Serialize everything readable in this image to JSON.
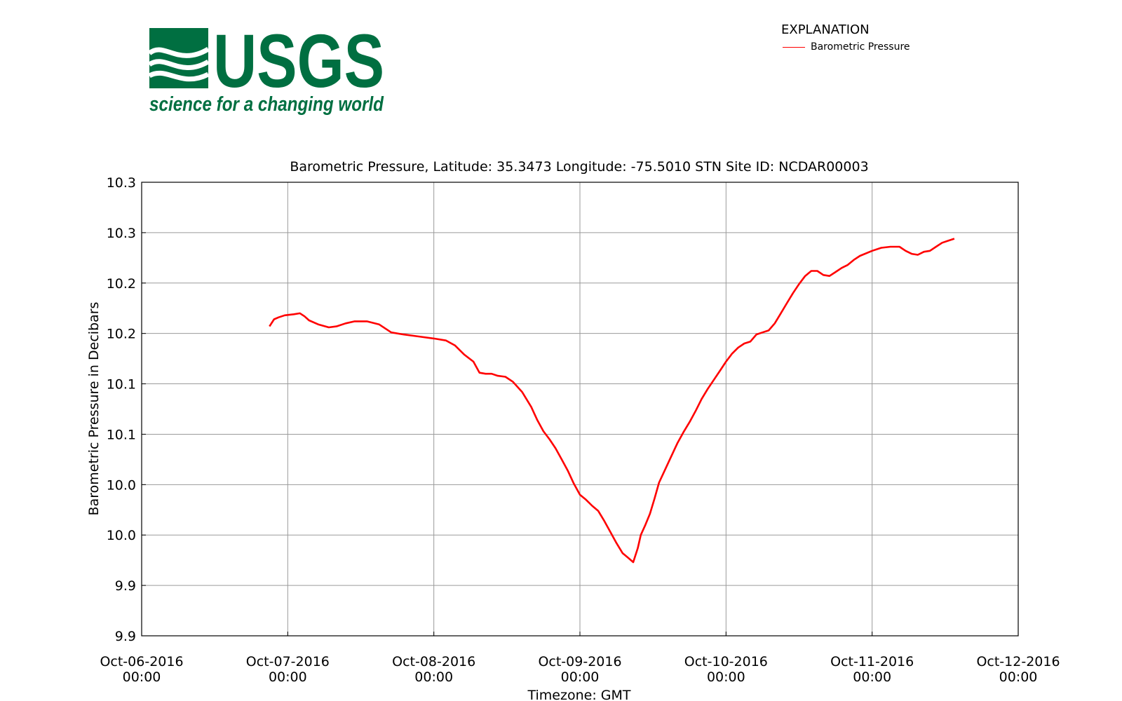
{
  "logo": {
    "wordmark": "USGS",
    "tagline": "science for a changing world",
    "color": "#006f41"
  },
  "legend": {
    "title": "EXPLANATION",
    "entry": "Barometric Pressure"
  },
  "chart_data": {
    "type": "line",
    "title": "Barometric Pressure, Latitude: 35.3473 Longitude: -75.5010 STN Site ID: NCDAR00003",
    "xlabel": "Timezone: GMT",
    "ylabel": "Barometric Pressure in Decibars",
    "grid": true,
    "legend_position": "top-right",
    "ylim": [
      9.89,
      10.34
    ],
    "y_ticks": [
      9.89,
      9.94,
      9.99,
      10.04,
      10.09,
      10.14,
      10.19,
      10.24,
      10.29,
      10.34
    ],
    "y_tick_labels": [
      "9.9",
      "9.9",
      "10.0",
      "10.0",
      "10.1",
      "10.1",
      "10.2",
      "10.2",
      "10.3",
      "10.3"
    ],
    "xlim": [
      "2016-10-06 00:00",
      "2016-10-12 00:00"
    ],
    "x_ticks": [
      "2016-10-06 00:00",
      "2016-10-07 00:00",
      "2016-10-08 00:00",
      "2016-10-09 00:00",
      "2016-10-10 00:00",
      "2016-10-11 00:00",
      "2016-10-12 00:00"
    ],
    "x_tick_labels": [
      [
        "Oct-06-2016",
        "00:00"
      ],
      [
        "Oct-07-2016",
        "00:00"
      ],
      [
        "Oct-08-2016",
        "00:00"
      ],
      [
        "Oct-09-2016",
        "00:00"
      ],
      [
        "Oct-10-2016",
        "00:00"
      ],
      [
        "Oct-11-2016",
        "00:00"
      ],
      [
        "Oct-12-2016",
        "00:00"
      ]
    ],
    "series": [
      {
        "name": "Barometric Pressure",
        "color": "#ff0000",
        "points": [
          [
            "2016-10-06 21:00",
            10.197
          ],
          [
            "2016-10-06 21:45",
            10.204
          ],
          [
            "2016-10-06 22:30",
            10.206
          ],
          [
            "2016-10-06 23:30",
            10.208
          ],
          [
            "2016-10-07 01:00",
            10.209
          ],
          [
            "2016-10-07 02:00",
            10.21
          ],
          [
            "2016-10-07 02:45",
            10.207
          ],
          [
            "2016-10-07 03:30",
            10.203
          ],
          [
            "2016-10-07 05:00",
            10.199
          ],
          [
            "2016-10-07 06:45",
            10.196
          ],
          [
            "2016-10-07 08:00",
            10.197
          ],
          [
            "2016-10-07 09:30",
            10.2
          ],
          [
            "2016-10-07 11:00",
            10.202
          ],
          [
            "2016-10-07 13:00",
            10.202
          ],
          [
            "2016-10-07 15:00",
            10.199
          ],
          [
            "2016-10-07 17:00",
            10.191
          ],
          [
            "2016-10-07 19:00",
            10.189
          ],
          [
            "2016-10-07 21:30",
            10.187
          ],
          [
            "2016-10-08 00:00",
            10.185
          ],
          [
            "2016-10-08 02:00",
            10.183
          ],
          [
            "2016-10-08 03:30",
            10.178
          ],
          [
            "2016-10-08 05:00",
            10.169
          ],
          [
            "2016-10-08 06:30",
            10.162
          ],
          [
            "2016-10-08 07:30",
            10.151
          ],
          [
            "2016-10-08 08:30",
            10.15
          ],
          [
            "2016-10-08 09:30",
            10.15
          ],
          [
            "2016-10-08 10:30",
            10.148
          ],
          [
            "2016-10-08 11:45",
            10.147
          ],
          [
            "2016-10-08 13:00",
            10.142
          ],
          [
            "2016-10-08 14:30",
            10.132
          ],
          [
            "2016-10-08 16:00",
            10.117
          ],
          [
            "2016-10-08 17:00",
            10.104
          ],
          [
            "2016-10-08 18:00",
            10.093
          ],
          [
            "2016-10-08 19:00",
            10.085
          ],
          [
            "2016-10-08 20:00",
            10.076
          ],
          [
            "2016-10-08 21:00",
            10.065
          ],
          [
            "2016-10-08 22:00",
            10.054
          ],
          [
            "2016-10-08 23:00",
            10.041
          ],
          [
            "2016-10-09 00:00",
            10.03
          ],
          [
            "2016-10-09 01:00",
            10.025
          ],
          [
            "2016-10-09 02:00",
            10.019
          ],
          [
            "2016-10-09 03:00",
            10.014
          ],
          [
            "2016-10-09 04:00",
            10.004
          ],
          [
            "2016-10-09 05:00",
            9.993
          ],
          [
            "2016-10-09 06:00",
            9.982
          ],
          [
            "2016-10-09 07:00",
            9.972
          ],
          [
            "2016-10-09 08:00",
            9.967
          ],
          [
            "2016-10-09 08:45",
            9.963
          ],
          [
            "2016-10-09 09:30",
            9.977
          ],
          [
            "2016-10-09 10:00",
            9.99
          ],
          [
            "2016-10-09 10:45",
            10.0
          ],
          [
            "2016-10-09 11:30",
            10.011
          ],
          [
            "2016-10-09 12:15",
            10.026
          ],
          [
            "2016-10-09 13:00",
            10.042
          ],
          [
            "2016-10-09 14:00",
            10.055
          ],
          [
            "2016-10-09 15:00",
            10.068
          ],
          [
            "2016-10-09 16:00",
            10.081
          ],
          [
            "2016-10-09 17:00",
            10.092
          ],
          [
            "2016-10-09 18:00",
            10.102
          ],
          [
            "2016-10-09 19:00",
            10.113
          ],
          [
            "2016-10-09 20:00",
            10.125
          ],
          [
            "2016-10-09 21:00",
            10.135
          ],
          [
            "2016-10-09 22:00",
            10.144
          ],
          [
            "2016-10-09 23:00",
            10.153
          ],
          [
            "2016-10-10 00:00",
            10.162
          ],
          [
            "2016-10-10 01:00",
            10.17
          ],
          [
            "2016-10-10 02:00",
            10.176
          ],
          [
            "2016-10-10 03:00",
            10.18
          ],
          [
            "2016-10-10 04:00",
            10.182
          ],
          [
            "2016-10-10 05:00",
            10.189
          ],
          [
            "2016-10-10 06:00",
            10.191
          ],
          [
            "2016-10-10 07:00",
            10.193
          ],
          [
            "2016-10-10 08:00",
            10.2
          ],
          [
            "2016-10-10 09:00",
            10.21
          ],
          [
            "2016-10-10 10:00",
            10.22
          ],
          [
            "2016-10-10 11:00",
            10.23
          ],
          [
            "2016-10-10 12:00",
            10.239
          ],
          [
            "2016-10-10 13:00",
            10.247
          ],
          [
            "2016-10-10 14:00",
            10.252
          ],
          [
            "2016-10-10 15:00",
            10.252
          ],
          [
            "2016-10-10 16:00",
            10.248
          ],
          [
            "2016-10-10 17:00",
            10.247
          ],
          [
            "2016-10-10 18:00",
            10.251
          ],
          [
            "2016-10-10 19:00",
            10.255
          ],
          [
            "2016-10-10 20:00",
            10.258
          ],
          [
            "2016-10-10 21:00",
            10.263
          ],
          [
            "2016-10-10 22:00",
            10.267
          ],
          [
            "2016-10-11 00:00",
            10.272
          ],
          [
            "2016-10-11 01:30",
            10.275
          ],
          [
            "2016-10-11 03:00",
            10.276
          ],
          [
            "2016-10-11 04:30",
            10.276
          ],
          [
            "2016-10-11 05:30",
            10.272
          ],
          [
            "2016-10-11 06:30",
            10.269
          ],
          [
            "2016-10-11 07:30",
            10.268
          ],
          [
            "2016-10-11 08:30",
            10.271
          ],
          [
            "2016-10-11 09:30",
            10.272
          ],
          [
            "2016-10-11 10:30",
            10.276
          ],
          [
            "2016-10-11 11:30",
            10.28
          ],
          [
            "2016-10-11 12:30",
            10.282
          ],
          [
            "2016-10-11 13:30",
            10.284
          ]
        ]
      }
    ]
  }
}
